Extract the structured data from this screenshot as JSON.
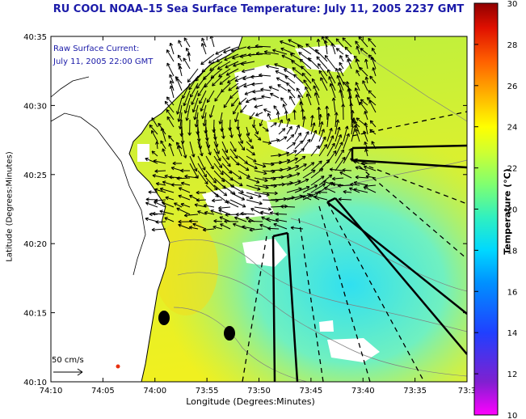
{
  "title": "RU COOL  NOAA–15  Sea Surface Temperature:  July 11, 2005 2237 GMT",
  "overlay": {
    "line1": "Raw Surface Current:",
    "line2": "July 11, 2005 22:00 GMT"
  },
  "scale_label": "50 cm/s",
  "axes": {
    "x_label": "Longitude (Degrees:Minutes)",
    "y_label": "Latitude (Degrees:Minutes)",
    "x_ticks": [
      "74:10",
      "74:05",
      "74:00",
      "73:55",
      "73:50",
      "73:45",
      "73:40",
      "73:35",
      "73:3"
    ],
    "y_ticks": [
      "40:35",
      "40:30",
      "40:25",
      "40:20",
      "40:15",
      "40:10"
    ]
  },
  "colorbar": {
    "label": "Temperature (°C)",
    "min": 10,
    "max": 30,
    "ticks": [
      "30",
      "28",
      "26",
      "24",
      "22",
      "20",
      "18",
      "16",
      "14",
      "12",
      "10"
    ],
    "colors": [
      "#ff00ff",
      "#7a1fc8",
      "#3030ff",
      "#1070ff",
      "#00c0ff",
      "#20f0e0",
      "#60ff90",
      "#c0ff40",
      "#ffff20",
      "#ffb000",
      "#ff6000",
      "#e81000",
      "#a00000"
    ]
  }
}
